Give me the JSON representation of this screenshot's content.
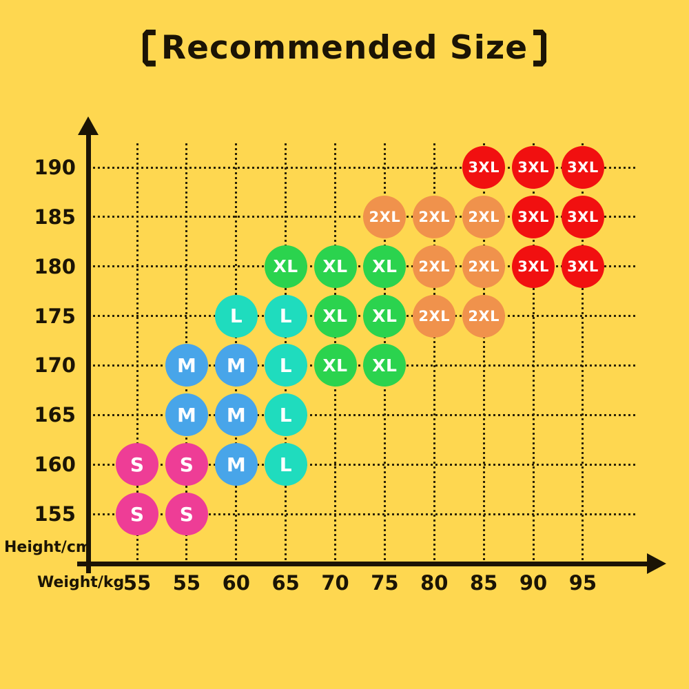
{
  "title": {
    "full": "【Recommended Size】",
    "text": "Recommended Size",
    "bracket_left": "【",
    "bracket_right": "】"
  },
  "colors": {
    "background": "#FED750",
    "ink": "#1b1405",
    "bubble_text": "#FFFFFF"
  },
  "chart_data": {
    "type": "scatter",
    "title": "【Recommended Size】",
    "xlabel": "Weight/kg",
    "ylabel": "Height/cm",
    "grid": "dotted",
    "legend": "none",
    "x_ticks": [
      "55",
      "55",
      "60",
      "65",
      "70",
      "75",
      "80",
      "85",
      "90",
      "95"
    ],
    "y_ticks": [
      "190",
      "185",
      "180",
      "175",
      "170",
      "165",
      "160",
      "155"
    ],
    "size_colors": {
      "S": "#EE3D96",
      "M": "#48A5E9",
      "L": "#1FDCBE",
      "XL": "#2BD34E",
      "2XL": "#F0924C",
      "3XL": "#F11010"
    },
    "points": [
      {
        "col": 7,
        "weight": "85",
        "height": "190",
        "size": "3XL"
      },
      {
        "col": 8,
        "weight": "90",
        "height": "190",
        "size": "3XL"
      },
      {
        "col": 9,
        "weight": "95",
        "height": "190",
        "size": "3XL"
      },
      {
        "col": 5,
        "weight": "75",
        "height": "185",
        "size": "2XL"
      },
      {
        "col": 6,
        "weight": "80",
        "height": "185",
        "size": "2XL"
      },
      {
        "col": 7,
        "weight": "85",
        "height": "185",
        "size": "2XL"
      },
      {
        "col": 8,
        "weight": "90",
        "height": "185",
        "size": "3XL"
      },
      {
        "col": 9,
        "weight": "95",
        "height": "185",
        "size": "3XL"
      },
      {
        "col": 3,
        "weight": "65",
        "height": "180",
        "size": "XL"
      },
      {
        "col": 4,
        "weight": "70",
        "height": "180",
        "size": "XL"
      },
      {
        "col": 5,
        "weight": "75",
        "height": "180",
        "size": "XL"
      },
      {
        "col": 6,
        "weight": "80",
        "height": "180",
        "size": "2XL"
      },
      {
        "col": 7,
        "weight": "85",
        "height": "180",
        "size": "2XL"
      },
      {
        "col": 8,
        "weight": "90",
        "height": "180",
        "size": "3XL"
      },
      {
        "col": 9,
        "weight": "95",
        "height": "180",
        "size": "3XL"
      },
      {
        "col": 2,
        "weight": "60",
        "height": "175",
        "size": "L"
      },
      {
        "col": 3,
        "weight": "65",
        "height": "175",
        "size": "L"
      },
      {
        "col": 4,
        "weight": "70",
        "height": "175",
        "size": "XL"
      },
      {
        "col": 5,
        "weight": "75",
        "height": "175",
        "size": "XL"
      },
      {
        "col": 6,
        "weight": "80",
        "height": "175",
        "size": "2XL"
      },
      {
        "col": 7,
        "weight": "85",
        "height": "175",
        "size": "2XL"
      },
      {
        "col": 1,
        "weight": "55",
        "height": "170",
        "size": "M"
      },
      {
        "col": 2,
        "weight": "60",
        "height": "170",
        "size": "M"
      },
      {
        "col": 3,
        "weight": "65",
        "height": "170",
        "size": "L"
      },
      {
        "col": 4,
        "weight": "70",
        "height": "170",
        "size": "XL"
      },
      {
        "col": 5,
        "weight": "75",
        "height": "170",
        "size": "XL"
      },
      {
        "col": 1,
        "weight": "55",
        "height": "165",
        "size": "M"
      },
      {
        "col": 2,
        "weight": "60",
        "height": "165",
        "size": "M"
      },
      {
        "col": 3,
        "weight": "65",
        "height": "165",
        "size": "L"
      },
      {
        "col": 0,
        "weight": "55",
        "height": "160",
        "size": "S"
      },
      {
        "col": 1,
        "weight": "55",
        "height": "160",
        "size": "S"
      },
      {
        "col": 2,
        "weight": "60",
        "height": "160",
        "size": "M"
      },
      {
        "col": 3,
        "weight": "65",
        "height": "160",
        "size": "L"
      },
      {
        "col": 0,
        "weight": "55",
        "height": "155",
        "size": "S"
      },
      {
        "col": 1,
        "weight": "55",
        "height": "155",
        "size": "S"
      }
    ]
  }
}
